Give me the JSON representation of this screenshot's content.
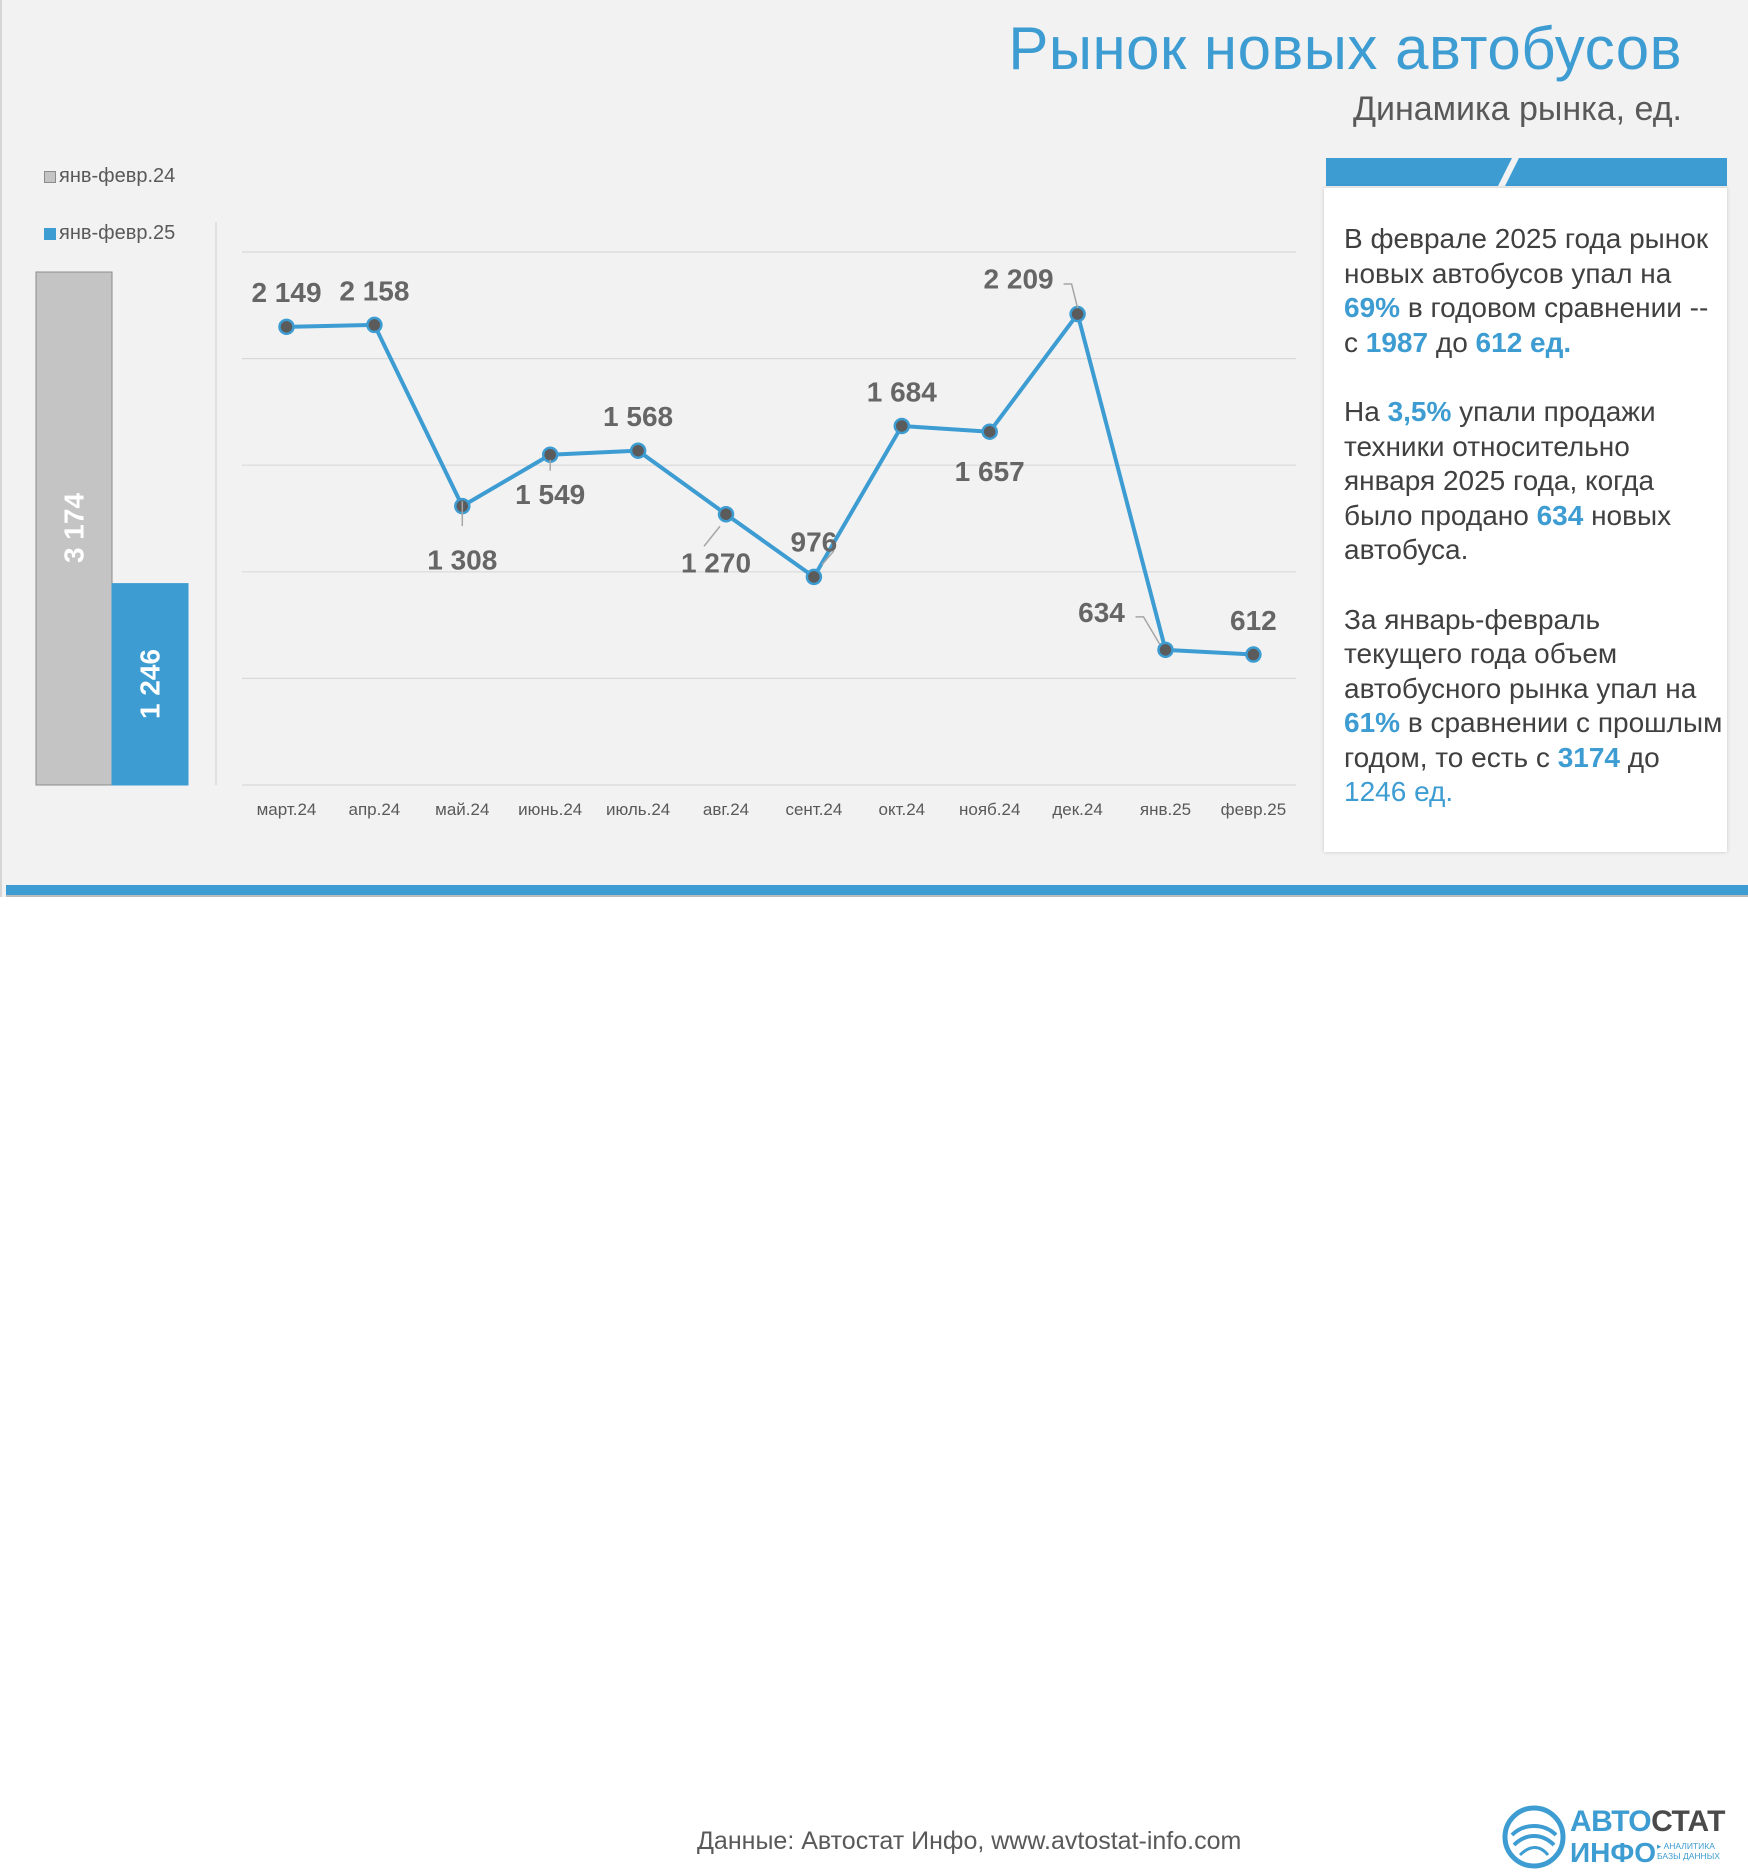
{
  "title": "Рынок новых автобусов",
  "subtitle": "Динамика рынка, ед.",
  "colors": {
    "accent": "#3d9cd2",
    "grey_bar": "#c4c4c4",
    "label": "#666666"
  },
  "chart_data": [
    {
      "type": "bar",
      "categories": [
        "янв-февр.24",
        "янв-февр.25"
      ],
      "values": [
        3174,
        1246
      ],
      "value_labels": [
        "3 174",
        "1 246"
      ],
      "legend": [
        "янв-февр.24",
        "янв-февр.25"
      ],
      "legend_position": "top-left",
      "ylim": [
        0,
        3174
      ]
    },
    {
      "type": "line",
      "categories": [
        "март.24",
        "апр.24",
        "май.24",
        "июнь.24",
        "июль.24",
        "авг.24",
        "сент.24",
        "окт.24",
        "нояб.24",
        "дек.24",
        "янв.25",
        "февр.25"
      ],
      "values": [
        2149,
        2158,
        1308,
        1549,
        1568,
        1270,
        976,
        1684,
        1657,
        2209,
        634,
        612
      ],
      "value_labels": [
        "2 149",
        "2 158",
        "1 308",
        "1 549",
        "1 568",
        "1 270",
        "976",
        "1 684",
        "1 657",
        "2 209",
        "634",
        "612"
      ],
      "ylim": [
        0,
        2500
      ],
      "grid": true
    }
  ],
  "panel": {
    "p1": [
      "В феврале 2025 года рынок новых автобусов упал на ",
      "69%",
      " в годовом сравнении -- с ",
      "1987",
      " до ",
      "612 ед."
    ],
    "p2": [
      "На ",
      "3,5%",
      " упали продажи техники относительно января 2025 года, когда было продано ",
      "634",
      " новых автобуса."
    ],
    "p3": [
      "За январь-февраль текущего года объем автобусного рынка упал на ",
      "61%",
      " в сравнении с прошлым годом, то есть с ",
      "3174",
      " до ",
      "1246 ед."
    ]
  },
  "footer": {
    "source": "Данные: Автостат Инфо, www.avtostat-info.com",
    "logo_auto": "АВТО",
    "logo_stat": "СТАТ",
    "logo_info": "ИНФО",
    "logo_tag1": "▸ АНАЛИТИКА",
    "logo_tag2": "БАЗЫ ДАННЫХ"
  }
}
